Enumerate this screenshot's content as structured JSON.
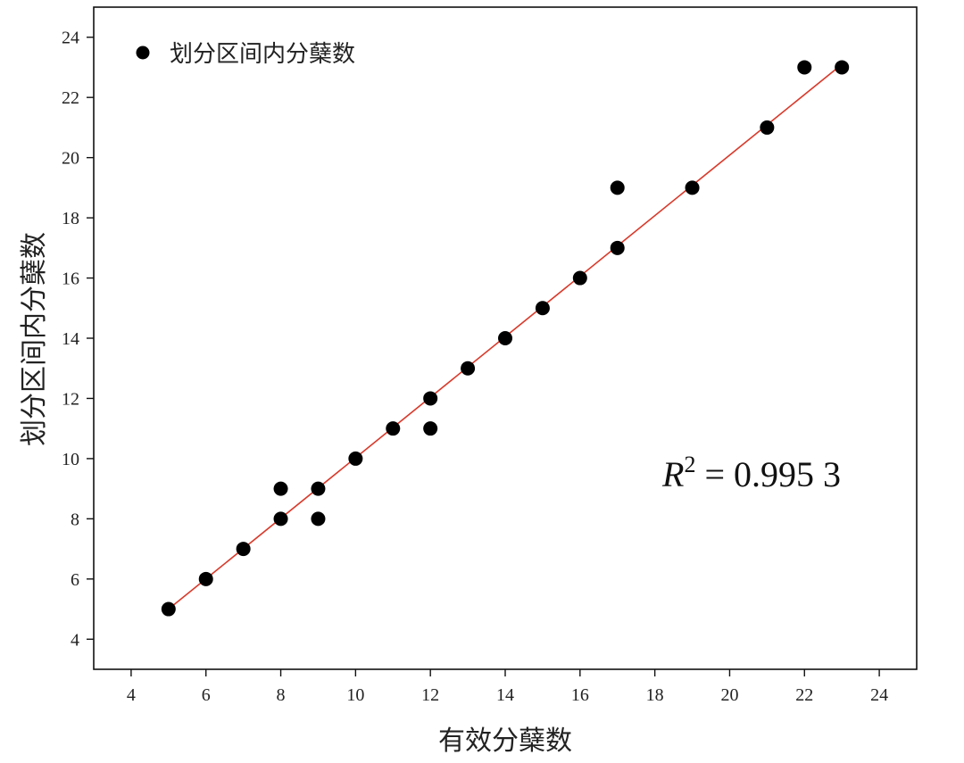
{
  "chart_data": {
    "type": "scatter",
    "xlabel": "有效分蘖数",
    "ylabel": "划分区间内分蘖数",
    "xlim": [
      3,
      25
    ],
    "ylim": [
      3,
      25
    ],
    "xticks": [
      4,
      6,
      8,
      10,
      12,
      14,
      16,
      18,
      20,
      22,
      24
    ],
    "yticks": [
      4,
      6,
      8,
      10,
      12,
      14,
      16,
      18,
      20,
      22,
      24
    ],
    "grid": false,
    "legend": {
      "position": "top-left",
      "entries": [
        "划分区间内分蘖数"
      ]
    },
    "series": [
      {
        "name": "划分区间内分蘖数",
        "color": "#000000",
        "points": [
          [
            5,
            5
          ],
          [
            6,
            6
          ],
          [
            7,
            7
          ],
          [
            8,
            8
          ],
          [
            8,
            9
          ],
          [
            9,
            9
          ],
          [
            9,
            8
          ],
          [
            10,
            10
          ],
          [
            11,
            11
          ],
          [
            12,
            12
          ],
          [
            12,
            11
          ],
          [
            13,
            13
          ],
          [
            14,
            14
          ],
          [
            15,
            15
          ],
          [
            16,
            16
          ],
          [
            17,
            17
          ],
          [
            17,
            19
          ],
          [
            19,
            19
          ],
          [
            21,
            21
          ],
          [
            22,
            23
          ],
          [
            23,
            23
          ]
        ]
      }
    ],
    "fit_line": {
      "color": "#d93a2b",
      "x": [
        5,
        23
      ],
      "y": [
        5,
        23.1
      ]
    },
    "annotation": {
      "symbol": "R",
      "exponent": "2",
      "text": " = 0.995 3",
      "position": "lower-right"
    }
  }
}
